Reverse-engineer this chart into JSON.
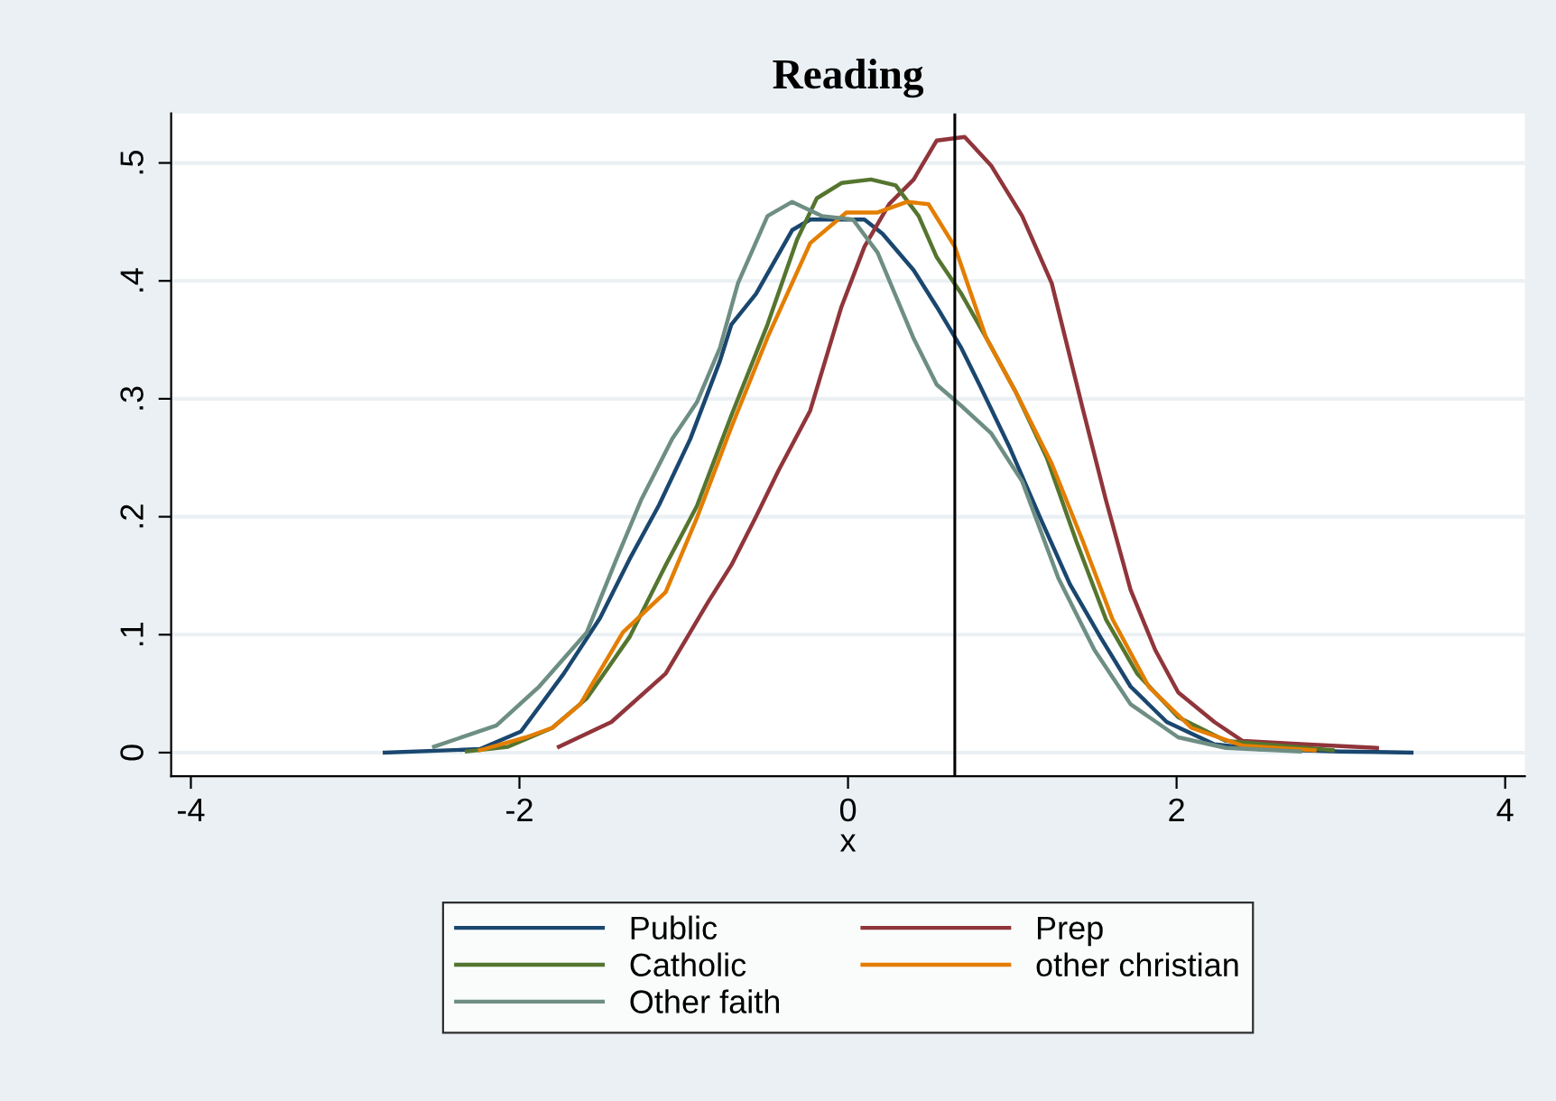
{
  "chart_data": {
    "type": "line",
    "title": "Reading",
    "xlabel": "x",
    "xlim": [
      -4.12,
      4.12
    ],
    "ylim": [
      -0.02,
      0.542
    ],
    "xticks": [
      -4,
      -2,
      0,
      2,
      4
    ],
    "yticks": [
      0,
      {
        "value": 0.1,
        "label": ".1"
      },
      {
        "value": 0.2,
        "label": ".2"
      },
      {
        "value": 0.3,
        "label": ".3"
      },
      {
        "value": 0.4,
        "label": ".4"
      },
      {
        "value": 0.5,
        "label": ".5"
      }
    ],
    "grid": "y",
    "legend": "bottom",
    "marker": "none",
    "line_style": "solid",
    "ref_lines": [
      {
        "axis": "x",
        "value": 0.65,
        "color": "#000000"
      }
    ],
    "series": [
      {
        "name": "Public",
        "color": "#1a476f",
        "x": [
          -2.82,
          -2.24,
          -1.99,
          -1.73,
          -1.51,
          -1.33,
          -1.15,
          -0.96,
          -0.78,
          -0.71,
          -0.56,
          -0.34,
          -0.23,
          0.1,
          0.21,
          0.4,
          0.54,
          0.69,
          0.8,
          0.98,
          1.17,
          1.35,
          1.54,
          1.72,
          1.94,
          2.23,
          2.5,
          3.0,
          3.43
        ],
        "values": [
          0,
          0.003,
          0.018,
          0.067,
          0.114,
          0.164,
          0.21,
          0.266,
          0.332,
          0.363,
          0.389,
          0.443,
          0.452,
          0.452,
          0.44,
          0.409,
          0.378,
          0.343,
          0.312,
          0.26,
          0.199,
          0.143,
          0.097,
          0.056,
          0.026,
          0.007,
          0.003,
          0.001,
          0
        ]
      },
      {
        "name": "Prep",
        "color": "#90353b",
        "x": [
          -1.76,
          -1.44,
          -1.11,
          -0.85,
          -0.71,
          -0.56,
          -0.42,
          -0.23,
          -0.04,
          0.1,
          0.25,
          0.4,
          0.54,
          0.71,
          0.87,
          1.06,
          1.24,
          1.43,
          1.57,
          1.72,
          1.87,
          2.01,
          2.23,
          2.4,
          2.78,
          3.22
        ],
        "values": [
          0.005,
          0.026,
          0.067,
          0.128,
          0.159,
          0.2,
          0.24,
          0.29,
          0.378,
          0.429,
          0.465,
          0.486,
          0.519,
          0.522,
          0.498,
          0.455,
          0.398,
          0.291,
          0.214,
          0.138,
          0.087,
          0.051,
          0.026,
          0.01,
          0.007,
          0.004
        ]
      },
      {
        "name": "Catholic",
        "color": "#55752f",
        "x": [
          -2.32,
          -2.07,
          -1.8,
          -1.59,
          -1.33,
          -1.11,
          -0.92,
          -0.71,
          -0.49,
          -0.31,
          -0.19,
          -0.04,
          0.14,
          0.29,
          0.43,
          0.54,
          0.69,
          0.84,
          1.02,
          1.21,
          1.39,
          1.57,
          1.76,
          2.01,
          2.3,
          2.95
        ],
        "values": [
          0.001,
          0.005,
          0.021,
          0.046,
          0.098,
          0.159,
          0.209,
          0.286,
          0.363,
          0.435,
          0.47,
          0.483,
          0.486,
          0.481,
          0.455,
          0.42,
          0.389,
          0.352,
          0.306,
          0.25,
          0.179,
          0.113,
          0.067,
          0.03,
          0.01,
          0.002
        ]
      },
      {
        "name": "other christian",
        "color": "#e37e00",
        "x": [
          -2.24,
          -1.96,
          -1.8,
          -1.63,
          -1.37,
          -1.11,
          -0.92,
          -0.71,
          -0.49,
          -0.23,
          -0.01,
          0.18,
          0.36,
          0.49,
          0.65,
          0.84,
          1.02,
          1.24,
          1.43,
          1.61,
          1.83,
          2.09,
          2.4,
          2.84
        ],
        "values": [
          0.002,
          0.013,
          0.021,
          0.041,
          0.102,
          0.136,
          0.199,
          0.276,
          0.352,
          0.432,
          0.458,
          0.458,
          0.467,
          0.465,
          0.429,
          0.352,
          0.306,
          0.245,
          0.179,
          0.113,
          0.056,
          0.021,
          0.006,
          0.002
        ]
      },
      {
        "name": "Other faith",
        "color": "#6e8e84",
        "x": [
          -2.52,
          -2.14,
          -1.88,
          -1.59,
          -1.41,
          -1.26,
          -1.07,
          -0.92,
          -0.78,
          -0.67,
          -0.49,
          -0.34,
          -0.16,
          0.03,
          0.18,
          0.4,
          0.54,
          0.69,
          0.87,
          1.06,
          1.28,
          1.5,
          1.72,
          2.01,
          2.3,
          2.75
        ],
        "values": [
          0.005,
          0.023,
          0.056,
          0.102,
          0.164,
          0.214,
          0.266,
          0.297,
          0.343,
          0.398,
          0.455,
          0.467,
          0.455,
          0.452,
          0.424,
          0.351,
          0.312,
          0.294,
          0.271,
          0.23,
          0.148,
          0.087,
          0.041,
          0.013,
          0.004,
          0.001
        ]
      }
    ]
  }
}
